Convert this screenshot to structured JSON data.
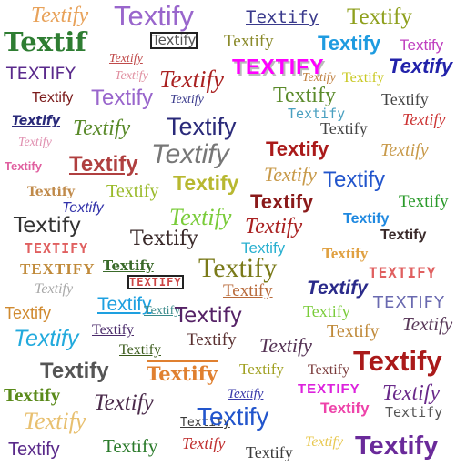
{
  "words": [
    {
      "text": "Textify",
      "color": "#e8a25a"
    },
    {
      "text": "Textify",
      "color": "#9966cc"
    },
    {
      "text": "Textify",
      "color": "#3a3a8c"
    },
    {
      "text": "Textify",
      "color": "#8fa01e"
    },
    {
      "text": "Textif",
      "color": "#2e7d32"
    },
    {
      "text": "Textify",
      "color": "#555555"
    },
    {
      "text": "Textify",
      "color": "#8a8a2a"
    },
    {
      "text": "Textify",
      "color": "#1e9be0"
    },
    {
      "text": "Textify",
      "color": "#c040c0"
    },
    {
      "text": "TEXTIFY",
      "color": "#5a2a8c"
    },
    {
      "text": "Textify",
      "color": "#c04a4a"
    },
    {
      "text": "TEXTIFY",
      "color": "#ff00ff"
    },
    {
      "text": "Textify",
      "color": "#2222aa"
    },
    {
      "text": "Textify",
      "color": "#aa2222"
    },
    {
      "text": "Textify",
      "color": "#e08fa0"
    },
    {
      "text": "Textify",
      "color": "#9966cc"
    },
    {
      "text": "Textify",
      "color": "#c08040"
    },
    {
      "text": "Textify",
      "color": "#c8c820"
    },
    {
      "text": "Textify",
      "color": "#7a1a1a"
    },
    {
      "text": "Textify",
      "color": "#3a3a8c"
    },
    {
      "text": "Textify",
      "color": "#5a8a2a"
    },
    {
      "text": "Textify",
      "color": "#4aa0c0"
    },
    {
      "text": "Textify",
      "color": "#444444"
    },
    {
      "text": "Textify",
      "color": "#cc3333"
    },
    {
      "text": "Textify",
      "color": "#2a2a7a"
    },
    {
      "text": "Textify",
      "color": "#e060a0"
    },
    {
      "text": "Textify",
      "color": "#5a8a2a"
    },
    {
      "text": "Textify",
      "color": "#e090b0"
    },
    {
      "text": "Textify",
      "color": "#777777"
    },
    {
      "text": "Textify",
      "color": "#aa1a1a"
    },
    {
      "text": "Textify",
      "color": "#c89a4a"
    },
    {
      "text": "Textify",
      "color": "#b04040"
    },
    {
      "text": "Textify",
      "color": "#2255cc"
    },
    {
      "text": "Textify",
      "color": "#e060a0"
    },
    {
      "text": "Textify",
      "color": "#c08a4a"
    },
    {
      "text": "Textify",
      "color": "#9aba2a"
    },
    {
      "text": "Textify",
      "color": "#a0a0a0"
    },
    {
      "text": "Textify",
      "color": "#aa3a3a"
    },
    {
      "text": "Textify",
      "color": "#3333aa"
    },
    {
      "text": "Textify",
      "color": "#8a1a1a"
    },
    {
      "text": "Textify",
      "color": "#b8b830"
    },
    {
      "text": "Textify",
      "color": "#2a9a2a"
    },
    {
      "text": "Textify",
      "color": "#1e66cc"
    },
    {
      "text": "Textify",
      "color": "#333333"
    },
    {
      "text": "Textify",
      "color": "#7acc3a"
    },
    {
      "text": "Textify",
      "color": "#aa2222"
    },
    {
      "text": "Textify",
      "color": "#1e88e0"
    },
    {
      "text": "Textify",
      "color": "#3a2a2a"
    },
    {
      "text": "TEXTIFY",
      "color": "#e06060"
    },
    {
      "text": "Textify",
      "color": "#5a3a3a"
    },
    {
      "text": "Textify",
      "color": "#2ab0d0"
    },
    {
      "text": "Textify",
      "color": "#e0a040"
    },
    {
      "text": "TEXTIFY",
      "color": "#c08a3a"
    },
    {
      "text": "Textify",
      "color": "#3a6a2a"
    },
    {
      "text": "Textify",
      "color": "#7a7a1a"
    },
    {
      "text": "TEXTIFY",
      "color": "#e06060"
    },
    {
      "text": "Textify",
      "color": "#a8a8a8"
    },
    {
      "text": "TEXTIFY",
      "color": "#cc4444"
    },
    {
      "text": "Textify",
      "color": "#b86a3a"
    },
    {
      "text": "Textify",
      "color": "#2a2a8a"
    },
    {
      "text": "Textify",
      "color": "#1ea0e0"
    },
    {
      "text": "TEXTIFY",
      "color": "#6a6ab0"
    },
    {
      "text": "Textify",
      "color": "#d08a30"
    },
    {
      "text": "Textify",
      "color": "#3a8a8a"
    },
    {
      "text": "Textify",
      "color": "#552266"
    },
    {
      "text": "Textify",
      "color": "#7acc3a"
    },
    {
      "text": "Textify",
      "color": "#5a3a5a"
    },
    {
      "text": "Textify",
      "color": "#22aadd"
    },
    {
      "text": "Textify",
      "color": "#4a2a6a"
    },
    {
      "text": "Textify",
      "color": "#5a3030"
    },
    {
      "text": "Textify",
      "color": "#553355"
    },
    {
      "text": "Textify",
      "color": "#c08a3a"
    },
    {
      "text": "Textify",
      "color": "#3a5a1a"
    },
    {
      "text": "Textify",
      "color": "#555555"
    },
    {
      "text": "Textify",
      "color": "#e08030"
    },
    {
      "text": "Textify",
      "color": "#a0a020"
    },
    {
      "text": "Textify",
      "color": "#7a3a3a"
    },
    {
      "text": "Textify",
      "color": "#aa1a1a"
    },
    {
      "text": "Textify",
      "color": "#5a8a1a"
    },
    {
      "text": "Textify",
      "color": "#4a2a4a"
    },
    {
      "text": "Textify",
      "color": "#3a3aaa"
    },
    {
      "text": "TEXTIFY",
      "color": "#dd22dd"
    },
    {
      "text": "Textify",
      "color": "#6a2a8a"
    },
    {
      "text": "Textify",
      "color": "#e8c070"
    },
    {
      "text": "Textify",
      "color": "#3a3a3a"
    },
    {
      "text": "Textify",
      "color": "#3a8a3a"
    },
    {
      "text": "Textify",
      "color": "#2255cc"
    },
    {
      "text": "Textify",
      "color": "#ee44aa"
    },
    {
      "text": "Textify",
      "color": "#555555"
    },
    {
      "text": "Textify",
      "color": "#5a2a8a"
    },
    {
      "text": "Textify",
      "color": "#2a7a2a"
    },
    {
      "text": "Textify",
      "color": "#c03030"
    },
    {
      "text": "Textify",
      "color": "#3a3a3a"
    },
    {
      "text": "Textify",
      "color": "#e8c850"
    },
    {
      "text": "Textify",
      "color": "#6a2a9a"
    }
  ]
}
